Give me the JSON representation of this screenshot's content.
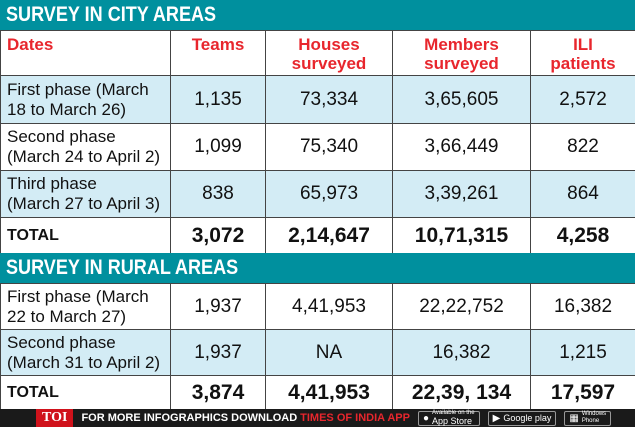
{
  "city": {
    "title": "SURVEY IN CITY AREAS",
    "headers": {
      "dates": "Dates",
      "teams": "Teams",
      "houses_1": "Houses",
      "houses_2": "surveyed",
      "members_1": "Members",
      "members_2": "surveyed",
      "ili_1": "ILI",
      "ili_2": "patients"
    },
    "rows": [
      {
        "label_1": "First phase (March",
        "label_2": "18 to March 26)",
        "teams": "1,135",
        "houses": "73,334",
        "members": "3,65,605",
        "ili": "2,572"
      },
      {
        "label_1": "Second phase",
        "label_2": "(March 24 to April 2)",
        "teams": "1,099",
        "houses": "75,340",
        "members": "3,66,449",
        "ili": "822"
      },
      {
        "label_1": "Third phase",
        "label_2": "(March 27 to April 3)",
        "teams": "838",
        "houses": "65,973",
        "members": "3,39,261",
        "ili": "864"
      }
    ],
    "total": {
      "label": "TOTAL",
      "teams": "3,072",
      "houses": "2,14,647",
      "members": "10,71,315",
      "ili": "4,258"
    }
  },
  "rural": {
    "title": "SURVEY IN RURAL AREAS",
    "rows": [
      {
        "label_1": "First phase (March",
        "label_2": "22 to March 27)",
        "teams": "1,937",
        "houses": "4,41,953",
        "members": "22,22,752",
        "ili": "16,382"
      },
      {
        "label_1": "Second phase",
        "label_2": "(March 31 to April 2)",
        "teams": "1,937",
        "houses": "NA",
        "members": "16,382",
        "ili": "1,215"
      }
    ],
    "total": {
      "label": "TOTAL",
      "teams": "3,874",
      "houses": "4,41,953",
      "members": "22,39, 134",
      "ili": "17,597"
    }
  },
  "footer": {
    "logo": "TOI",
    "promo_text": "FOR MORE  INFOGRAPHICS DOWNLOAD",
    "promo_app": "TIMES OF INDIA  APP",
    "appstore_small": "Available on the",
    "appstore_big": "App Store",
    "googleplay": "Google play",
    "windows_1": "Windows",
    "windows_2": "Phone"
  },
  "colors": {
    "title_bg": "#00909e",
    "header_text": "#e8262d",
    "row_tint": "#d3ecf5",
    "footer_bg": "#1a1a1a"
  }
}
